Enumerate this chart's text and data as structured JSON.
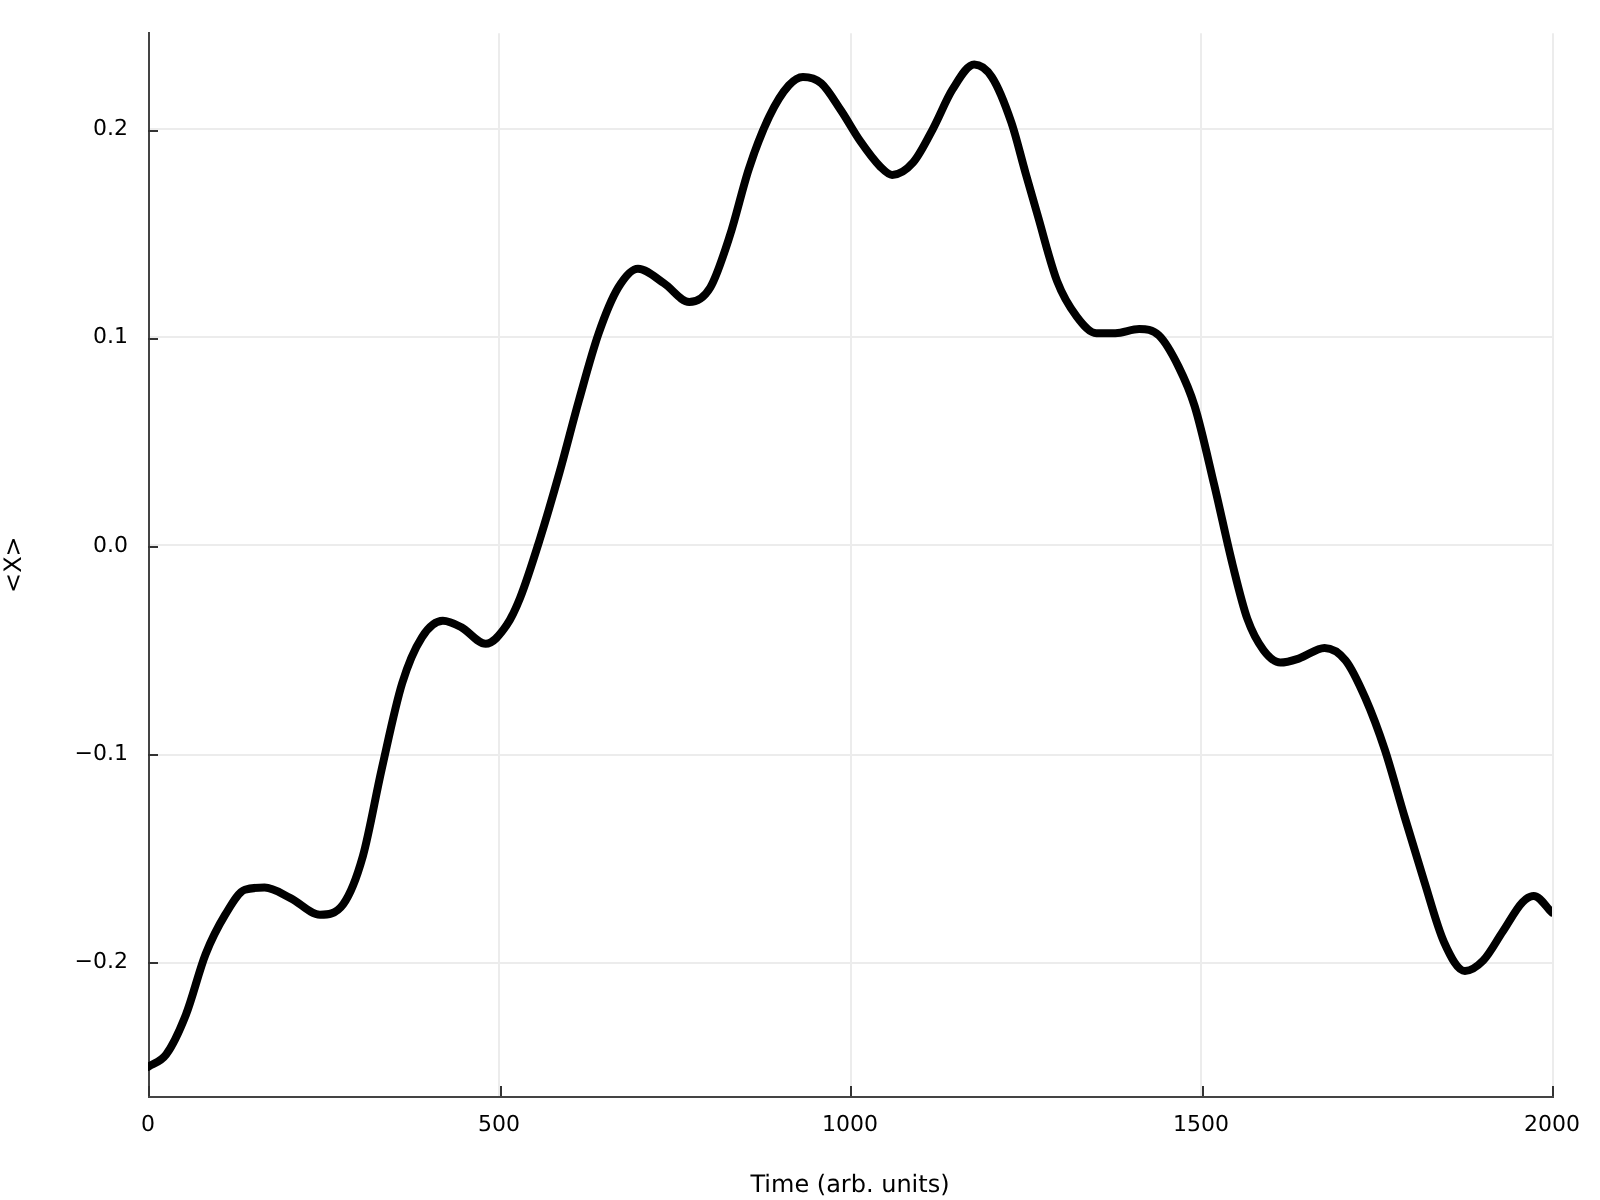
{
  "chart_data": {
    "type": "line",
    "xlabel": "Time (arb. units)",
    "ylabel": "<X>",
    "x": [
      0,
      26,
      54,
      82,
      110,
      138,
      166,
      203,
      245,
      278,
      306,
      333,
      362,
      390,
      420,
      446,
      481,
      511,
      530,
      558,
      586,
      614,
      642,
      670,
      698,
      735,
      771,
      801,
      829,
      856,
      885,
      913,
      933,
      959,
      987,
      1015,
      1043,
      1060,
      1090,
      1118,
      1146,
      1177,
      1202,
      1230,
      1250,
      1267,
      1295,
      1323,
      1351,
      1378,
      1412,
      1440,
      1468,
      1491,
      1519,
      1545,
      1566,
      1589,
      1613,
      1640,
      1676,
      1706,
      1734,
      1762,
      1790,
      1818,
      1846,
      1876,
      1902,
      1930,
      1958,
      1974,
      2000
    ],
    "series": [
      {
        "color": "#000000",
        "values": [
          -0.25,
          -0.244,
          -0.225,
          -0.196,
          -0.177,
          -0.165,
          -0.164,
          -0.169,
          -0.177,
          -0.172,
          -0.149,
          -0.107,
          -0.066,
          -0.044,
          -0.036,
          -0.039,
          -0.047,
          -0.038,
          -0.025,
          0.003,
          0.035,
          0.07,
          0.102,
          0.124,
          0.133,
          0.126,
          0.117,
          0.124,
          0.149,
          0.181,
          0.206,
          0.221,
          0.225,
          0.222,
          0.209,
          0.194,
          0.182,
          0.178,
          0.184,
          0.2,
          0.219,
          0.231,
          0.225,
          0.203,
          0.179,
          0.159,
          0.127,
          0.11,
          0.102,
          0.102,
          0.104,
          0.101,
          0.086,
          0.067,
          0.029,
          -0.009,
          -0.035,
          -0.05,
          -0.056,
          -0.054,
          -0.049,
          -0.055,
          -0.073,
          -0.098,
          -0.13,
          -0.161,
          -0.19,
          -0.204,
          -0.199,
          -0.185,
          -0.171,
          -0.168,
          -0.176
        ]
      }
    ],
    "xlim": [
      0,
      2000
    ],
    "ylim": [
      -0.264,
      0.246
    ],
    "xticks": [
      0,
      500,
      1000,
      1500,
      2000
    ],
    "yticks": [
      {
        "value": -0.2,
        "label": "−0.2"
      },
      {
        "value": -0.1,
        "label": "−0.1"
      },
      {
        "value": 0,
        "label": "0.0"
      },
      0.1,
      0.2
    ],
    "grid": true,
    "line_style": "solid"
  }
}
